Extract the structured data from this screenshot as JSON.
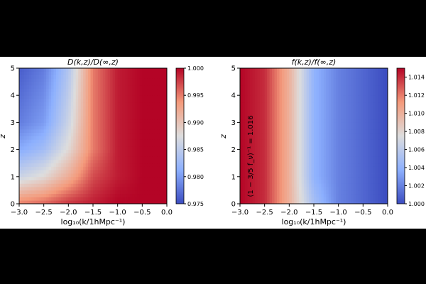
{
  "chart_data": [
    {
      "type": "heatmap",
      "title": "D(k,z)/D(∞,z)",
      "xlabel": "log₁₀(k/1hMpc⁻¹)",
      "ylabel": "z",
      "xlim": [
        -3.0,
        0.0
      ],
      "ylim": [
        0,
        5
      ],
      "x_ticks": [
        "−3.0",
        "−2.5",
        "−2.0",
        "−1.5",
        "−1.0",
        "−0.5",
        "0.0"
      ],
      "y_ticks": [
        "0",
        "1",
        "2",
        "3",
        "4",
        "5"
      ],
      "colormap": "coolwarm",
      "colorbar": {
        "min": 0.975,
        "max": 1.0,
        "ticks": [
          "0.975",
          "0.980",
          "0.985",
          "0.990",
          "0.995",
          "1.000"
        ]
      },
      "x": [
        -3.0,
        -2.5,
        -2.0,
        -1.5,
        -1.0,
        -0.5,
        0.0
      ],
      "y": [
        0,
        1,
        2,
        3,
        4,
        5
      ],
      "z": [
        [
          0.995,
          0.996,
          0.998,
          0.999,
          1.0,
          1.0,
          1.0
        ],
        [
          0.986,
          0.988,
          0.992,
          0.997,
          0.999,
          1.0,
          1.0
        ],
        [
          0.981,
          0.983,
          0.988,
          0.995,
          0.999,
          1.0,
          1.0
        ],
        [
          0.978,
          0.98,
          0.986,
          0.995,
          0.999,
          1.0,
          1.0
        ],
        [
          0.977,
          0.979,
          0.985,
          0.995,
          0.999,
          1.0,
          1.0
        ],
        [
          0.976,
          0.978,
          0.984,
          0.995,
          0.999,
          1.0,
          1.0
        ]
      ]
    },
    {
      "type": "heatmap",
      "title": "f(k,z)/f(∞,z)",
      "xlabel": "log₁₀(k/1hMpc⁻¹)",
      "ylabel": "z",
      "xlim": [
        -3.0,
        0.0
      ],
      "ylim": [
        0,
        5
      ],
      "x_ticks": [
        "−3.0",
        "−2.5",
        "−2.0",
        "−1.5",
        "−1.0",
        "−0.5",
        "0.0"
      ],
      "y_ticks": [
        "0",
        "1",
        "2",
        "3",
        "4",
        "5"
      ],
      "colormap": "coolwarm",
      "colorbar": {
        "min": 1.0,
        "max": 1.015,
        "ticks": [
          "1.000",
          "1.002",
          "1.004",
          "1.006",
          "1.008",
          "1.010",
          "1.012",
          "1.014"
        ]
      },
      "x": [
        -3.0,
        -2.5,
        -2.0,
        -1.5,
        -1.0,
        -0.5,
        0.0
      ],
      "y": [
        0,
        1,
        2,
        3,
        4,
        5
      ],
      "z": [
        [
          1.015,
          1.014,
          1.01,
          1.005,
          1.002,
          1.001,
          1.0
        ],
        [
          1.015,
          1.014,
          1.01,
          1.004,
          1.002,
          1.001,
          1.0
        ],
        [
          1.015,
          1.014,
          1.01,
          1.004,
          1.002,
          1.001,
          1.0
        ],
        [
          1.015,
          1.014,
          1.01,
          1.004,
          1.002,
          1.001,
          1.0
        ],
        [
          1.015,
          1.014,
          1.01,
          1.004,
          1.002,
          1.001,
          1.0
        ],
        [
          1.015,
          1.014,
          1.01,
          1.004,
          1.002,
          1.001,
          1.0
        ]
      ],
      "annotation": "(1 − 3/5 f_ν)⁻¹ = 1.016"
    }
  ]
}
